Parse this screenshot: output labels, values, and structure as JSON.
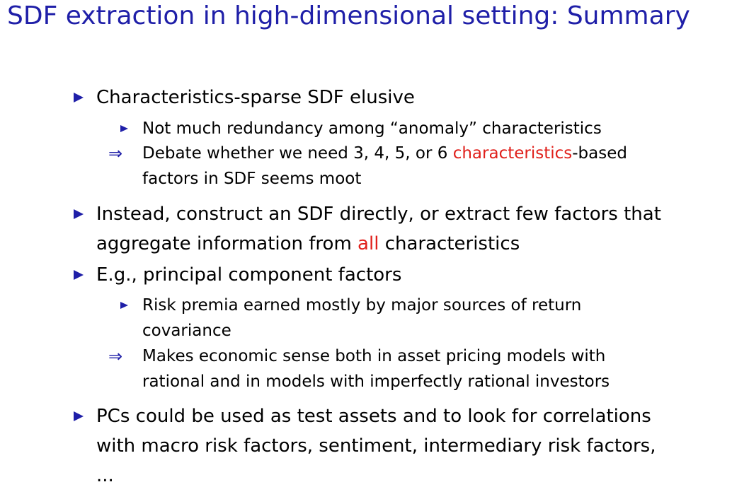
{
  "title": "SDF extraction in high-dimensional setting: Summary",
  "colors": {
    "title": "#1f1fa8",
    "bullet": "#1f1fa8",
    "highlight": "#e0201b"
  },
  "implies_symbol": "⇒",
  "items": {
    "b1": {
      "text": "Characteristics-sparse SDF elusive"
    },
    "b1_sub1": {
      "text": "Not much redundancy among “anomaly” characteristics"
    },
    "b1_imp": {
      "line1_pre": "Debate whether we need 3, 4, 5, or 6 ",
      "line1_red": "characteristics",
      "line1_post": "-based",
      "line2": "factors in SDF seems moot"
    },
    "b2": {
      "line1": "Instead, construct an SDF directly, or extract few factors that",
      "line2_pre": "aggregate information from ",
      "line2_red": "all",
      "line2_post": " characteristics"
    },
    "b3": {
      "text": "E.g., principal component factors"
    },
    "b3_sub1": {
      "line1": "Risk premia earned mostly by major sources of return",
      "line2": "covariance"
    },
    "b3_imp": {
      "line1": "Makes economic sense both in asset pricing models with",
      "line2": "rational and in models with imperfectly rational investors"
    },
    "b4": {
      "line1": "PCs could be used as test assets and to look for correlations",
      "line2": "with macro risk factors, sentiment, intermediary risk factors,",
      "line3": "..."
    }
  }
}
